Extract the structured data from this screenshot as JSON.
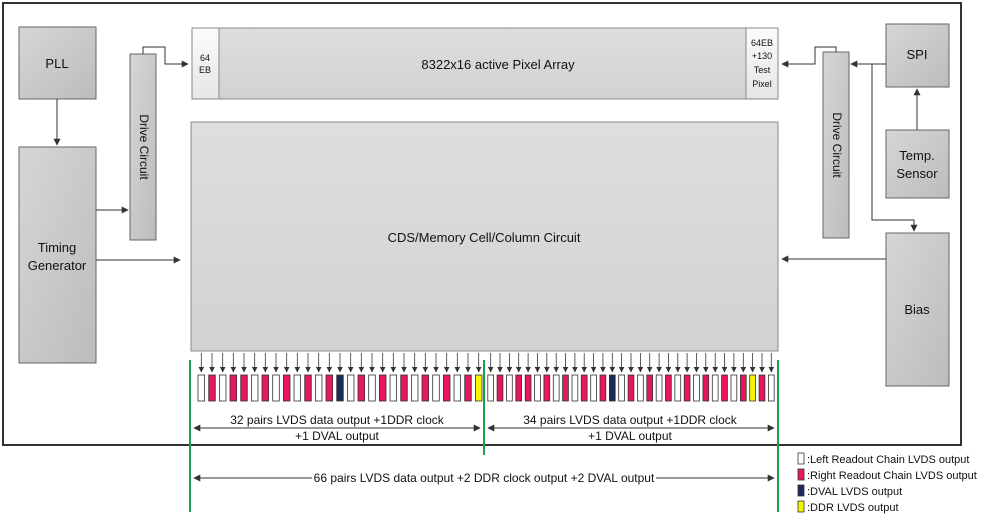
{
  "blocks": {
    "pll": "PLL",
    "timing_line1": "Timing",
    "timing_line2": "Generator",
    "drive_left": "Drive Circuit",
    "drive_right": "Drive Circuit",
    "eb_left_line1": "64",
    "eb_left_line2": "EB",
    "pixel_array": "8322x16 active Pixel Array",
    "eb_right_line1": "64EB",
    "eb_right_line2": "+130",
    "eb_right_line3": "Test",
    "eb_right_line4": "Pixel",
    "cds": "CDS/Memory Cell/Column Circuit",
    "spi": "SPI",
    "temp_line1": "Temp.",
    "temp_line2": "Sensor",
    "bias": "Bias"
  },
  "spans": {
    "left_line1": "32 pairs LVDS data output +1DDR clock",
    "left_line2": "+1 DVAL output",
    "right_line1": "34  pairs LVDS data output +1DDR clock",
    "right_line2": "+1 DVAL output",
    "total": "66 pairs LVDS data output +2 DDR clock output +2 DVAL output"
  },
  "legend": [
    {
      "text": ":Left Readout Chain LVDS output",
      "color": "#ffffff"
    },
    {
      "text": ":Right Readout Chain LVDS output",
      "color": "#e8175d"
    },
    {
      "text": ":DVAL LVDS output",
      "color": "#1a2a5e"
    },
    {
      "text": ":DDR LVDS output",
      "color": "#f5f500"
    }
  ],
  "outputs": {
    "colors": {
      "left": "#ffffff",
      "right": "#e8175d",
      "dval": "#1a2a5e",
      "ddr": "#f5f500"
    },
    "group_a": [
      "left",
      "right",
      "left",
      "right",
      "right",
      "left",
      "right",
      "left",
      "right",
      "left",
      "right",
      "left",
      "right",
      "dval",
      "left",
      "right",
      "left",
      "right",
      "left",
      "right",
      "left",
      "right",
      "left",
      "right",
      "left",
      "right",
      "ddr"
    ],
    "group_b": [
      "left",
      "right",
      "left",
      "right",
      "right",
      "left",
      "right",
      "left",
      "right",
      "left",
      "right",
      "left",
      "right",
      "dval",
      "left",
      "right",
      "left",
      "right",
      "left",
      "right",
      "left",
      "right",
      "left",
      "right",
      "left",
      "right",
      "left",
      "right",
      "ddr",
      "right",
      "left"
    ]
  }
}
